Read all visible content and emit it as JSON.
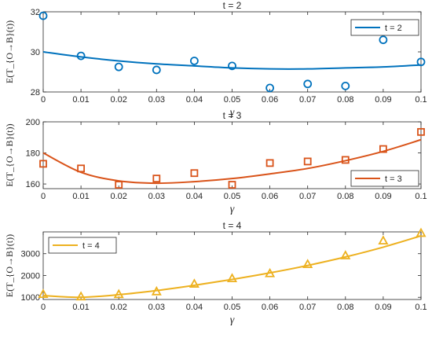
{
  "chart_data": [
    {
      "type": "scatter",
      "title": "t = 2",
      "xlabel": "γ",
      "ylabel": "E(T_{O→B}(t))",
      "xlim": [
        0,
        0.1
      ],
      "ylim": [
        28,
        32
      ],
      "xticks": [
        "0",
        "0.01",
        "0.02",
        "0.03",
        "0.04",
        "0.05",
        "0.06",
        "0.07",
        "0.08",
        "0.09",
        "0.1"
      ],
      "yticks": [
        28,
        30,
        32
      ],
      "yticklabels": [
        "28",
        "30",
        "32"
      ],
      "legend": "t = 2",
      "legend_position": "top-right",
      "color": "#0072BD",
      "marker": "circle",
      "grid": false,
      "series": [
        {
          "kind": "markers",
          "x": [
            0,
            0.01,
            0.02,
            0.03,
            0.04,
            0.05,
            0.06,
            0.07,
            0.08,
            0.09,
            0.1
          ],
          "y": [
            31.8,
            29.8,
            29.25,
            29.1,
            29.55,
            29.3,
            28.2,
            28.4,
            28.3,
            30.6,
            29.5
          ]
        },
        {
          "name": "t = 2",
          "kind": "line",
          "x": [
            0,
            0.01,
            0.02,
            0.03,
            0.04,
            0.05,
            0.06,
            0.07,
            0.08,
            0.09,
            0.1
          ],
          "y": [
            30.0,
            29.75,
            29.55,
            29.4,
            29.3,
            29.2,
            29.15,
            29.15,
            29.2,
            29.25,
            29.35
          ]
        }
      ]
    },
    {
      "type": "scatter",
      "title": "t = 3",
      "xlabel": "γ",
      "ylabel": "E(T_{O→B}(t))",
      "xlim": [
        0,
        0.1
      ],
      "ylim": [
        157,
        200
      ],
      "xticks": [
        "0",
        "0.01",
        "0.02",
        "0.03",
        "0.04",
        "0.05",
        "0.06",
        "0.07",
        "0.08",
        "0.09",
        "0.1"
      ],
      "yticks": [
        160,
        180,
        200
      ],
      "yticklabels": [
        "160",
        "180",
        "200"
      ],
      "legend": "t = 3",
      "legend_position": "bottom-right",
      "color": "#D95319",
      "marker": "square",
      "grid": false,
      "series": [
        {
          "kind": "markers",
          "x": [
            0,
            0.01,
            0.02,
            0.03,
            0.04,
            0.05,
            0.06,
            0.07,
            0.08,
            0.09,
            0.1
          ],
          "y": [
            173,
            170,
            159.5,
            163.5,
            167,
            159.5,
            173.5,
            174.5,
            175.5,
            182.5,
            193.5
          ]
        },
        {
          "name": "t = 3",
          "kind": "line",
          "x": [
            0,
            0.01,
            0.02,
            0.03,
            0.04,
            0.05,
            0.06,
            0.07,
            0.08,
            0.09,
            0.1
          ],
          "y": [
            180,
            167.5,
            162,
            160.5,
            161.5,
            163.5,
            166.5,
            170,
            175,
            181,
            188.5
          ]
        }
      ]
    },
    {
      "type": "scatter",
      "title": "t = 4",
      "xlabel": "γ",
      "ylabel": "E(T_{O→B}(t))",
      "xlim": [
        0,
        0.1
      ],
      "ylim": [
        900,
        4000
      ],
      "xticks": [
        "0",
        "0.01",
        "0.02",
        "0.03",
        "0.04",
        "0.05",
        "0.06",
        "0.07",
        "0.08",
        "0.09",
        "0.1"
      ],
      "yticks": [
        1000,
        2000,
        3000
      ],
      "yticklabels": [
        "1000",
        "2000",
        "3000"
      ],
      "legend": "t = 4",
      "legend_position": "top-left",
      "color": "#EDB120",
      "marker": "triangle",
      "grid": false,
      "series": [
        {
          "kind": "markers",
          "x": [
            0,
            0.01,
            0.02,
            0.03,
            0.04,
            0.05,
            0.06,
            0.07,
            0.08,
            0.09,
            0.1
          ],
          "y": [
            1130,
            1020,
            1120,
            1250,
            1600,
            1850,
            2080,
            2500,
            2900,
            3580,
            3930
          ]
        },
        {
          "name": "t = 4",
          "kind": "line",
          "x": [
            0,
            0.01,
            0.02,
            0.03,
            0.04,
            0.05,
            0.06,
            0.07,
            0.08,
            0.09,
            0.1
          ],
          "y": [
            1080,
            1000,
            1120,
            1310,
            1550,
            1820,
            2120,
            2460,
            2850,
            3300,
            3820
          ]
        }
      ]
    }
  ]
}
